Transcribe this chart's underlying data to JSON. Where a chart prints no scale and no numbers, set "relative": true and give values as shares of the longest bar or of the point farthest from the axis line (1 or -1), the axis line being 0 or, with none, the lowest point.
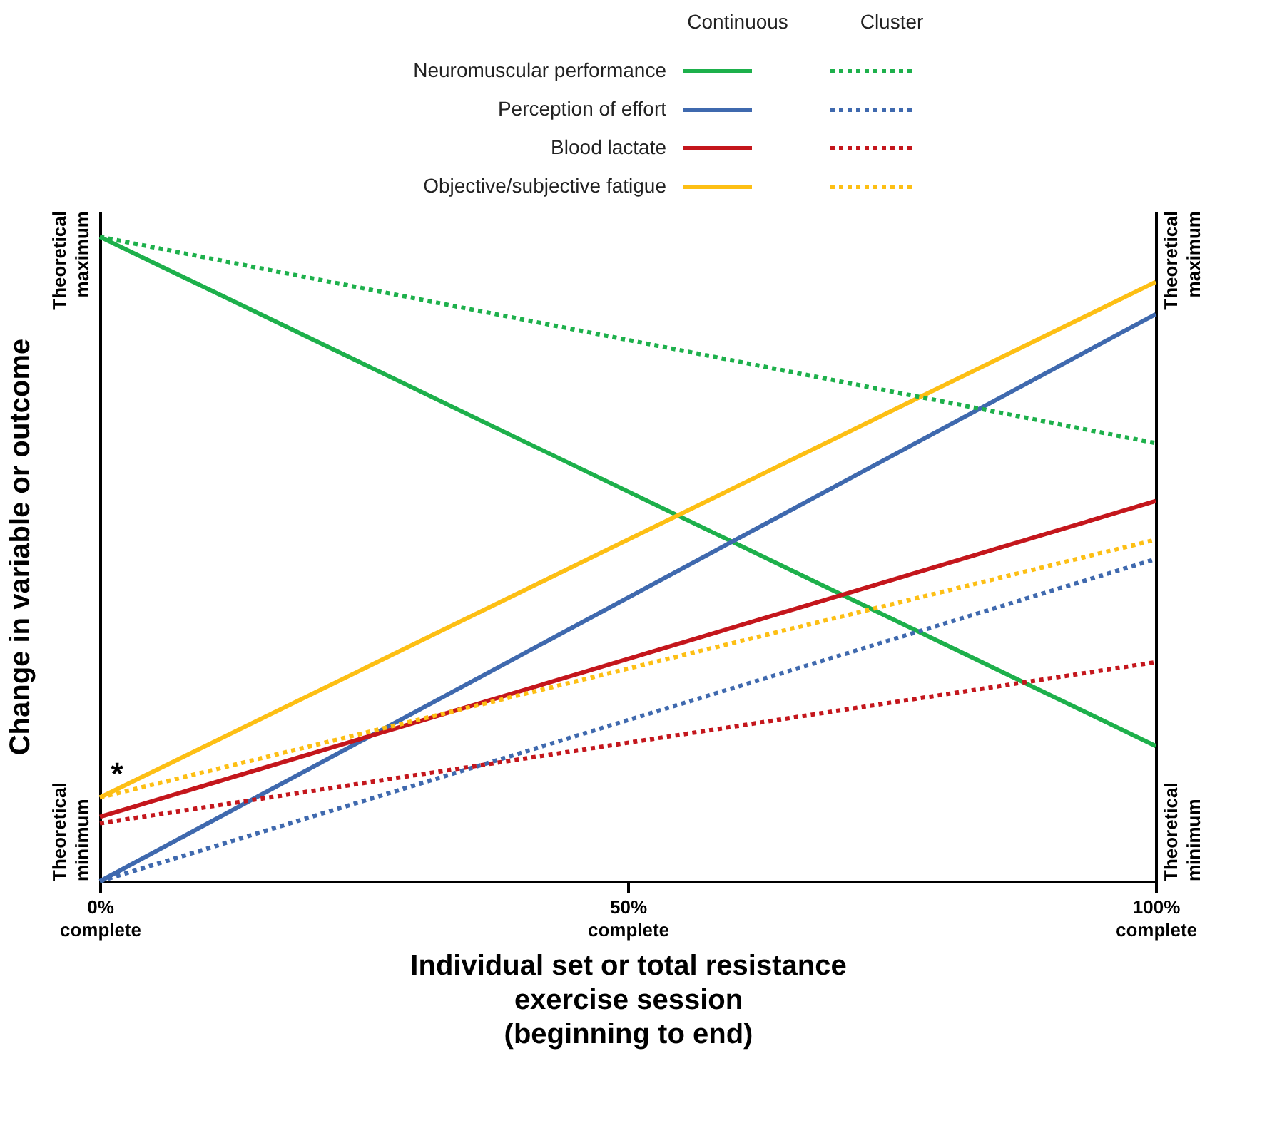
{
  "chart_data": {
    "type": "line",
    "relative": true,
    "xlabel": "Individual set or total resistance\nexercise session\n(beginning to end)",
    "ylabel": "Change in variable or outcome",
    "x": [
      0,
      100
    ],
    "xlim": [
      0,
      100
    ],
    "xticks": [
      {
        "value": 0,
        "label": "0% complete"
      },
      {
        "value": 50,
        "label": "50% complete"
      },
      {
        "value": 100,
        "label": "100% complete"
      }
    ],
    "grid": false,
    "legend": "top",
    "series": [
      {
        "name": "Neuromuscular performance",
        "color": "#1db04b",
        "line_style": "solid",
        "values": [
          1,
          0.21
        ]
      },
      {
        "name": "Perception of effort",
        "color": "#3f69ae",
        "line_style": "solid",
        "values": [
          0,
          0.88
        ]
      },
      {
        "name": "Blood lactate",
        "color": "#c4161c",
        "line_style": "solid",
        "values": [
          0.1,
          0.59
        ]
      },
      {
        "name": "Objective/subjective fatigue",
        "color": "#fdbf14",
        "line_style": "solid",
        "values": [
          0.13,
          0.93
        ]
      },
      {
        "color": "#1db04b",
        "line_style": "dotted",
        "values": [
          1,
          0.68
        ]
      },
      {
        "color": "#3f69ae",
        "line_style": "dotted",
        "values": [
          0,
          0.5
        ]
      },
      {
        "color": "#c4161c",
        "line_style": "dotted",
        "values": [
          0.09,
          0.34
        ]
      },
      {
        "color": "#fdbf14",
        "line_style": "dotted",
        "values": [
          0.13,
          0.53
        ]
      }
    ],
    "annotations": [
      "Continuous",
      "Cluster",
      "*",
      "Theoretical maximum",
      "Theoretical minimum",
      "Theoretical maximum",
      "Theoretical minimum"
    ]
  }
}
